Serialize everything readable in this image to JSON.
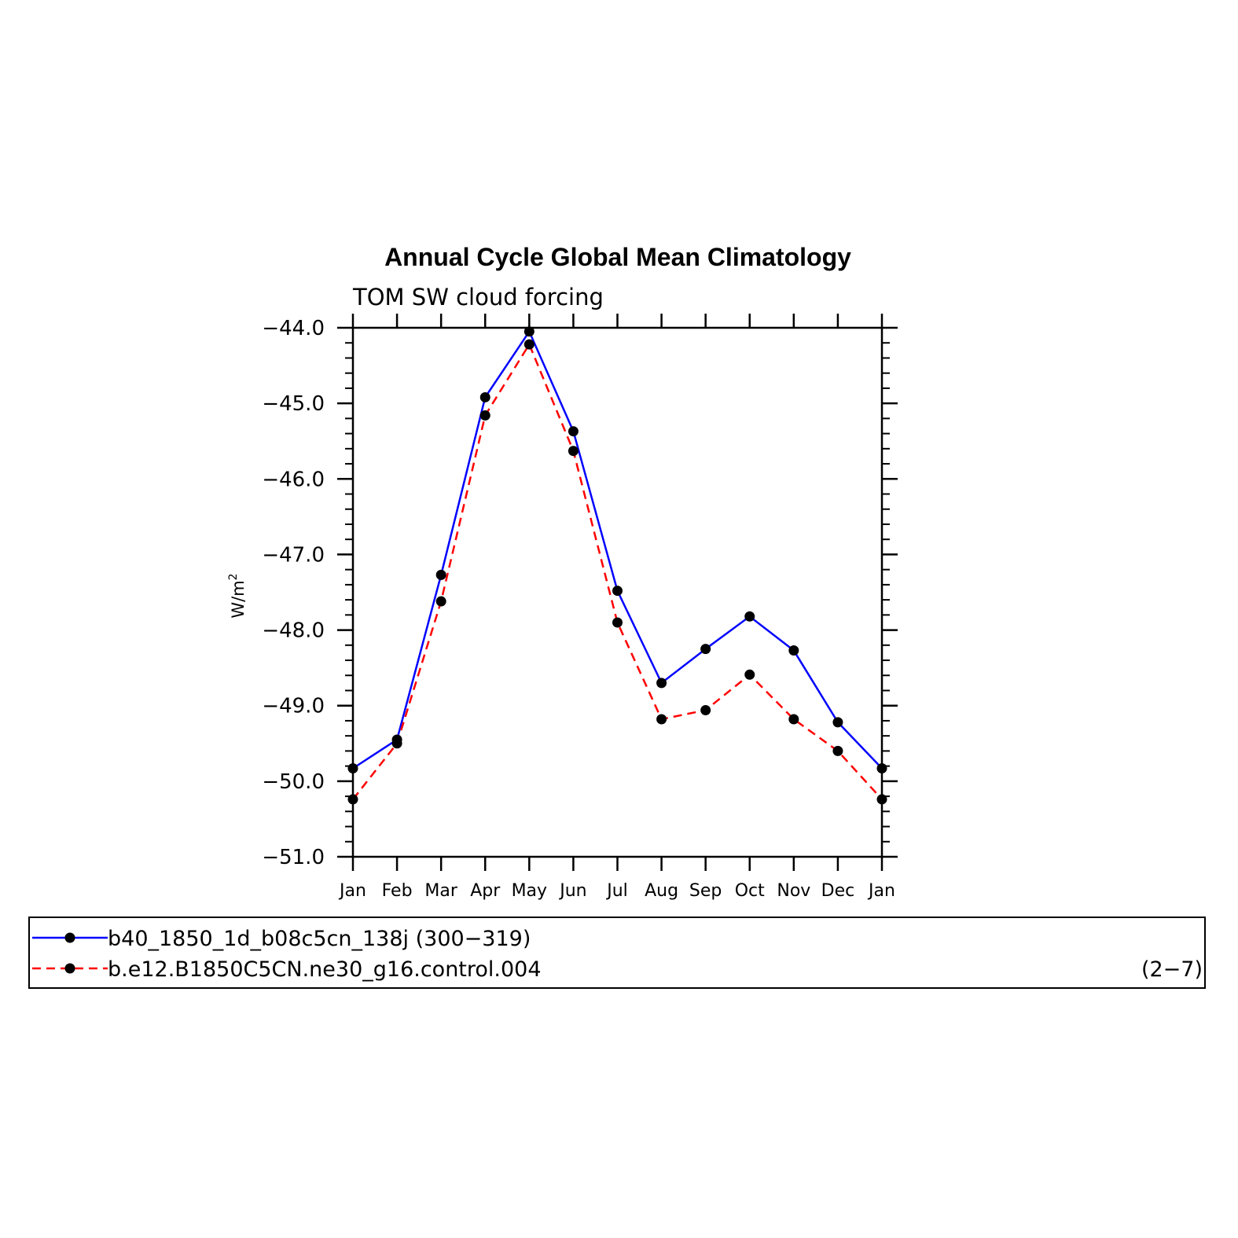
{
  "chart_data": {
    "type": "line",
    "title": "Annual Cycle Global Mean Climatology",
    "subtitle": "TOM SW cloud forcing",
    "ylabel": "W/m",
    "ylabel_superscript": "2",
    "xlabel": "",
    "categories": [
      "Jan",
      "Feb",
      "Mar",
      "Apr",
      "May",
      "Jun",
      "Jul",
      "Aug",
      "Sep",
      "Oct",
      "Nov",
      "Dec",
      "Jan"
    ],
    "ylim": [
      -51.0,
      -44.0
    ],
    "yticks": [
      "-44.0",
      "-45.0",
      "-46.0",
      "-47.0",
      "-48.0",
      "-49.0",
      "-50.0",
      "-51.0"
    ],
    "ytick_values": [
      -44.0,
      -45.0,
      -46.0,
      -47.0,
      -48.0,
      -49.0,
      -50.0,
      -51.0
    ],
    "grid": false,
    "series": [
      {
        "name": "b40_1850_1d_b08c5cn_138j (300−319)",
        "color": "#0000ff",
        "line_style": "solid",
        "values": [
          -49.83,
          -49.45,
          -47.27,
          -44.92,
          -44.05,
          -45.37,
          -47.48,
          -48.7,
          -48.25,
          -47.82,
          -48.27,
          -49.22,
          -49.83
        ]
      },
      {
        "name": "b.e12.B1850C5CN.ne30_g16.control.004",
        "color": "#ff0000",
        "line_style": "dashed",
        "values": [
          -50.24,
          -49.5,
          -47.62,
          -45.16,
          -44.22,
          -45.63,
          -47.9,
          -49.18,
          -49.06,
          -48.59,
          -49.18,
          -49.6,
          -50.24
        ]
      }
    ],
    "legend_placement": "bottom",
    "legend_note": "(2−7)"
  }
}
